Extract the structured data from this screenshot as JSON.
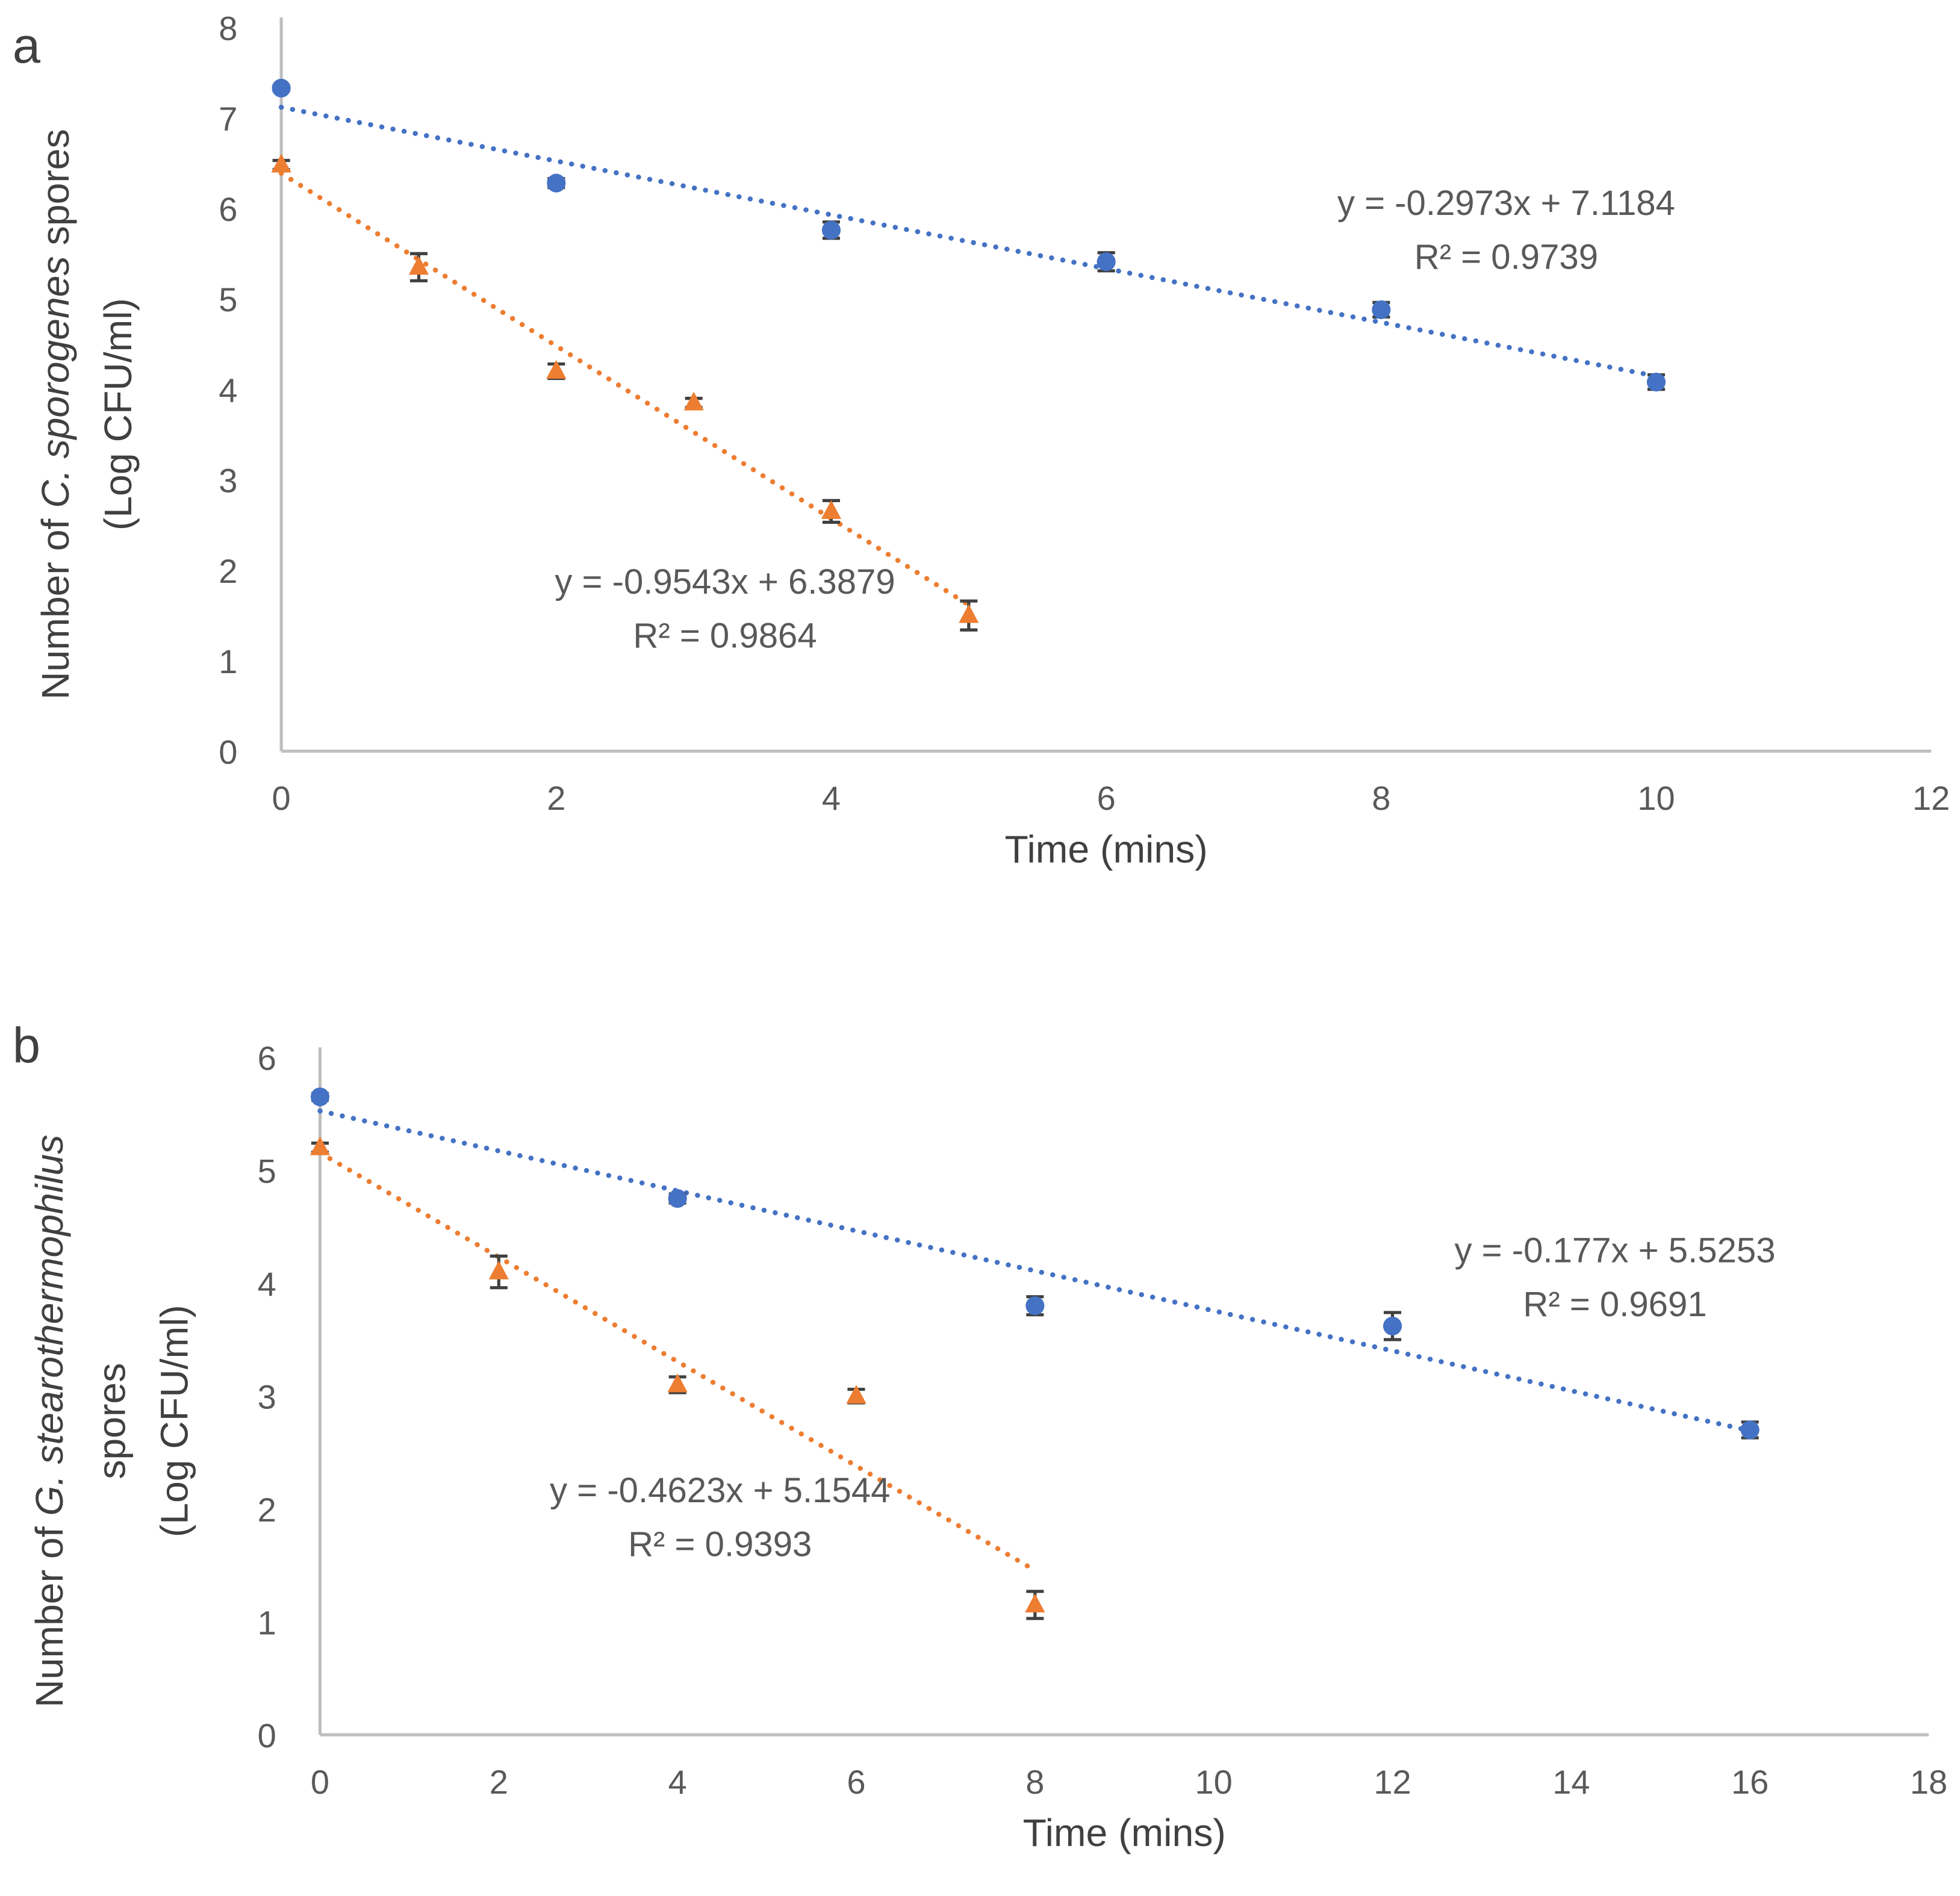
{
  "chart_data": [
    {
      "type": "scatter",
      "panel_label": "a",
      "xlabel": "Time (mins)",
      "ylabel_parts": [
        "Number of ",
        "C. sporogenes",
        " spores"
      ],
      "ylabel_line2": "(Log CFU/ml)",
      "xlim": [
        0,
        12
      ],
      "ylim": [
        0,
        8
      ],
      "xticks": [
        0,
        2,
        4,
        6,
        8,
        10,
        12
      ],
      "yticks": [
        0,
        1,
        2,
        3,
        4,
        5,
        6,
        7,
        8
      ],
      "series": [
        {
          "name": "blue",
          "color": "#4472C4",
          "marker": "circle",
          "x": [
            0,
            2,
            4,
            6,
            8,
            10
          ],
          "y": [
            7.33,
            6.28,
            5.76,
            5.41,
            4.88,
            4.08
          ],
          "err": [
            0.03,
            0.05,
            0.09,
            0.1,
            0.08,
            0.08
          ],
          "trend": {
            "slope": -0.2973,
            "intercept": 7.1184,
            "x_range": [
              0,
              10
            ],
            "equation": "y = -0.2973x + 7.1184",
            "r2": "R² = 0.9739"
          }
        },
        {
          "name": "orange",
          "color": "#ED7D31",
          "marker": "triangle",
          "x": [
            0,
            1,
            2,
            3,
            4,
            5
          ],
          "y": [
            6.48,
            5.35,
            4.2,
            3.85,
            2.65,
            1.5
          ],
          "err": [
            0.05,
            0.15,
            0.08,
            0.05,
            0.12,
            0.16
          ],
          "trend": {
            "slope": -0.9543,
            "intercept": 6.3879,
            "x_range": [
              0,
              5
            ],
            "equation": "y = -0.9543x + 6.3879",
            "r2": "R² = 0.9864"
          }
        }
      ]
    },
    {
      "type": "scatter",
      "panel_label": "b",
      "xlabel": "Time (mins)",
      "ylabel_parts": [
        "Number of ",
        "G. stearothermophilus",
        ""
      ],
      "ylabel_line2": "spores",
      "ylabel_line3": "(Log CFU/ml)",
      "xlim": [
        0,
        18
      ],
      "ylim": [
        0,
        6
      ],
      "xticks": [
        0,
        2,
        4,
        6,
        8,
        10,
        12,
        14,
        16,
        18
      ],
      "yticks": [
        0,
        1,
        2,
        3,
        4,
        5,
        6
      ],
      "series": [
        {
          "name": "blue",
          "color": "#4472C4",
          "marker": "circle",
          "x": [
            0,
            4,
            8,
            12,
            16
          ],
          "y": [
            5.65,
            4.75,
            3.8,
            3.62,
            2.7
          ],
          "err": [
            0.03,
            0.04,
            0.08,
            0.12,
            0.07
          ],
          "trend": {
            "slope": -0.177,
            "intercept": 5.5253,
            "x_range": [
              0,
              16
            ],
            "equation": "y = -0.177x + 5.5253",
            "r2": "R² = 0.9691"
          }
        },
        {
          "name": "orange",
          "color": "#ED7D31",
          "marker": "triangle",
          "x": [
            0,
            2,
            4,
            6,
            8
          ],
          "y": [
            5.2,
            4.1,
            3.1,
            3.0,
            1.15
          ],
          "err": [
            0.04,
            0.14,
            0.07,
            0.06,
            0.12
          ],
          "trend": {
            "slope": -0.4623,
            "intercept": 5.1544,
            "x_range": [
              0,
              8
            ],
            "equation": "y = -0.4623x + 5.1544",
            "r2": "R² = 0.9393"
          }
        }
      ]
    }
  ]
}
